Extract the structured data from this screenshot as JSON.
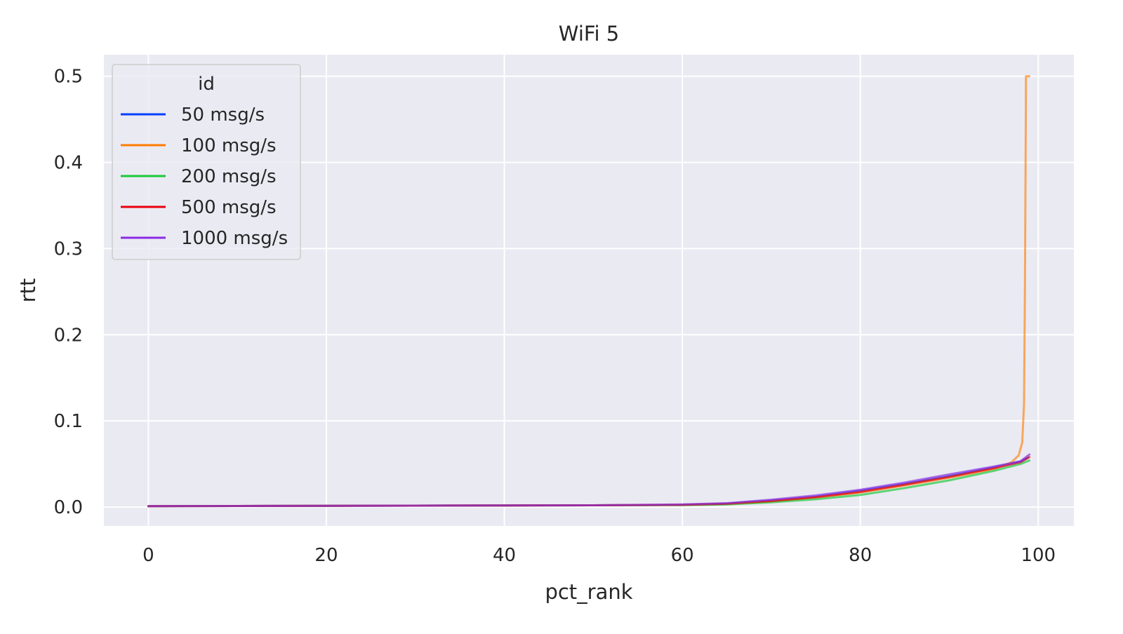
{
  "chart_data": {
    "type": "line",
    "title": "WiFi 5",
    "xlabel": "pct_rank",
    "ylabel": "rtt",
    "xlim": [
      -5,
      104
    ],
    "ylim": [
      -0.022,
      0.525
    ],
    "xticks": [
      0,
      20,
      40,
      60,
      80,
      100
    ],
    "yticks": [
      0.0,
      0.1,
      0.2,
      0.3,
      0.4,
      0.5
    ],
    "xtick_labels": [
      "0",
      "20",
      "40",
      "60",
      "80",
      "100"
    ],
    "ytick_labels": [
      "0.0",
      "0.1",
      "0.2",
      "0.3",
      "0.4",
      "0.5"
    ],
    "grid": true,
    "legend": {
      "title": "id",
      "position": "top-left"
    },
    "series": [
      {
        "name": "50 msg/s",
        "color": "#023eff",
        "x": [
          0,
          10,
          20,
          30,
          40,
          50,
          60,
          65,
          70,
          75,
          80,
          85,
          90,
          95,
          98,
          98.8
        ],
        "y": [
          0.001,
          0.0012,
          0.0014,
          0.0016,
          0.0018,
          0.002,
          0.0025,
          0.004,
          0.0075,
          0.012,
          0.019,
          0.027,
          0.036,
          0.046,
          0.053,
          0.057
        ]
      },
      {
        "name": "100 msg/s",
        "color": "#ff7c00",
        "x": [
          0,
          10,
          20,
          30,
          40,
          50,
          60,
          65,
          70,
          75,
          80,
          85,
          90,
          95,
          97,
          97.8,
          98.2,
          98.4,
          98.5,
          98.6,
          98.62,
          99.0
        ],
        "y": [
          0.001,
          0.0012,
          0.0014,
          0.0016,
          0.0018,
          0.002,
          0.0025,
          0.0035,
          0.0065,
          0.011,
          0.017,
          0.025,
          0.034,
          0.044,
          0.052,
          0.06,
          0.075,
          0.12,
          0.25,
          0.45,
          0.5,
          0.5
        ]
      },
      {
        "name": "200 msg/s",
        "color": "#1ac938",
        "x": [
          0,
          10,
          20,
          30,
          40,
          50,
          60,
          65,
          70,
          75,
          80,
          85,
          90,
          95,
          98,
          99
        ],
        "y": [
          0.001,
          0.0012,
          0.0014,
          0.0016,
          0.0018,
          0.002,
          0.0022,
          0.003,
          0.0055,
          0.009,
          0.014,
          0.022,
          0.031,
          0.042,
          0.05,
          0.054
        ]
      },
      {
        "name": "500 msg/s",
        "color": "#e8000b",
        "x": [
          0,
          10,
          20,
          30,
          40,
          50,
          60,
          65,
          70,
          75,
          80,
          85,
          90,
          95,
          98,
          99
        ],
        "y": [
          0.001,
          0.0012,
          0.0014,
          0.0016,
          0.0018,
          0.002,
          0.0025,
          0.0038,
          0.007,
          0.0115,
          0.0175,
          0.026,
          0.035,
          0.045,
          0.052,
          0.058
        ]
      },
      {
        "name": "1000 msg/s",
        "color": "#8b2be2",
        "x": [
          0,
          10,
          20,
          30,
          40,
          50,
          60,
          65,
          70,
          75,
          80,
          85,
          90,
          95,
          98,
          99
        ],
        "y": [
          0.001,
          0.0012,
          0.0014,
          0.0016,
          0.0018,
          0.002,
          0.003,
          0.0045,
          0.0085,
          0.0135,
          0.02,
          0.0285,
          0.038,
          0.047,
          0.053,
          0.061
        ]
      }
    ]
  }
}
